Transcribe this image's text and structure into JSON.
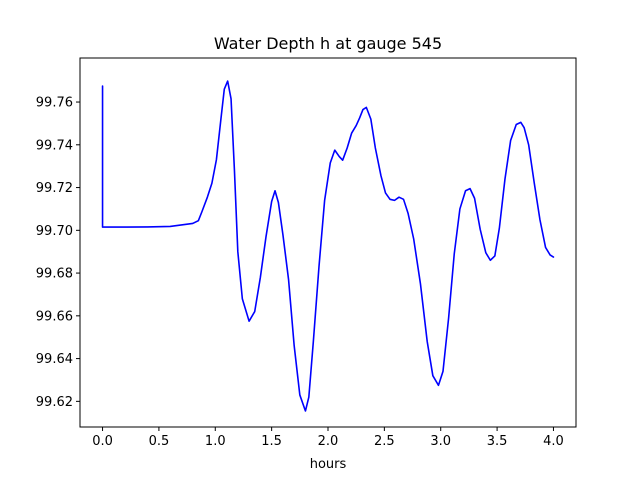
{
  "chart_data": {
    "type": "line",
    "title": "Water Depth h at gauge 545",
    "xlabel": "hours",
    "ylabel": "",
    "xlim": [
      -0.2,
      4.2
    ],
    "ylim": [
      99.608,
      99.7806
    ],
    "grid": false,
    "legend": "none",
    "x_ticks": [
      0.0,
      0.5,
      1.0,
      1.5,
      2.0,
      2.5,
      3.0,
      3.5,
      4.0
    ],
    "x_tick_labels": [
      "0.0",
      "0.5",
      "1.0",
      "1.5",
      "2.0",
      "2.5",
      "3.0",
      "3.5",
      "4.0"
    ],
    "y_ticks": [
      99.62,
      99.64,
      99.66,
      99.68,
      99.7,
      99.72,
      99.74,
      99.76
    ],
    "y_tick_labels": [
      "99.62",
      "99.64",
      "99.66",
      "99.68",
      "99.70",
      "99.72",
      "99.74",
      "99.76"
    ],
    "series": [
      {
        "color": "#0000ff",
        "x": [
          0.0,
          0.0,
          0.2,
          0.4,
          0.6,
          0.7,
          0.8,
          0.85,
          0.88,
          0.93,
          0.97,
          1.01,
          1.05,
          1.08,
          1.11,
          1.14,
          1.17,
          1.2,
          1.24,
          1.3,
          1.35,
          1.4,
          1.45,
          1.5,
          1.53,
          1.56,
          1.6,
          1.65,
          1.7,
          1.75,
          1.8,
          1.83,
          1.87,
          1.92,
          1.97,
          2.02,
          2.06,
          2.1,
          2.13,
          2.17,
          2.21,
          2.25,
          2.28,
          2.31,
          2.34,
          2.38,
          2.42,
          2.47,
          2.51,
          2.55,
          2.59,
          2.63,
          2.67,
          2.71,
          2.76,
          2.82,
          2.88,
          2.93,
          2.98,
          3.02,
          3.07,
          3.12,
          3.17,
          3.22,
          3.26,
          3.3,
          3.35,
          3.4,
          3.44,
          3.48,
          3.52,
          3.57,
          3.62,
          3.67,
          3.71,
          3.74,
          3.78,
          3.83,
          3.88,
          3.93,
          3.97,
          4.0
        ],
        "y": [
          99.7675,
          99.7015,
          99.7015,
          99.7016,
          99.7018,
          99.7025,
          99.7032,
          99.7045,
          99.7085,
          99.7155,
          99.722,
          99.733,
          99.752,
          99.766,
          99.7698,
          99.7615,
          99.728,
          99.69,
          99.668,
          99.6575,
          99.662,
          99.678,
          99.697,
          99.7135,
          99.7185,
          99.713,
          99.698,
          99.677,
          99.646,
          99.623,
          99.6155,
          99.622,
          99.648,
          99.683,
          99.714,
          99.7315,
          99.7375,
          99.7345,
          99.7328,
          99.7385,
          99.7455,
          99.749,
          99.7525,
          99.7565,
          99.7575,
          99.752,
          99.7385,
          99.7255,
          99.7175,
          99.7145,
          99.714,
          99.7155,
          99.7145,
          99.708,
          99.696,
          99.675,
          99.648,
          99.632,
          99.6275,
          99.634,
          99.659,
          99.689,
          99.71,
          99.7185,
          99.7195,
          99.715,
          99.7005,
          99.6895,
          99.686,
          99.688,
          99.701,
          99.724,
          99.742,
          99.7495,
          99.7505,
          99.748,
          99.74,
          99.722,
          99.705,
          99.692,
          99.6885,
          99.6875
        ]
      }
    ]
  }
}
